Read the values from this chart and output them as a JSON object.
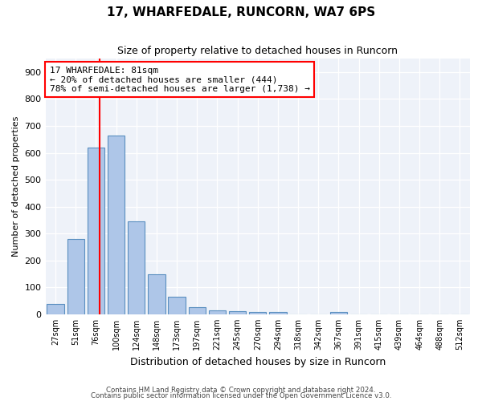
{
  "title1": "17, WHARFEDALE, RUNCORN, WA7 6PS",
  "title2": "Size of property relative to detached houses in Runcorn",
  "xlabel": "Distribution of detached houses by size in Runcorn",
  "ylabel": "Number of detached properties",
  "categories": [
    "27sqm",
    "51sqm",
    "76sqm",
    "100sqm",
    "124sqm",
    "148sqm",
    "173sqm",
    "197sqm",
    "221sqm",
    "245sqm",
    "270sqm",
    "294sqm",
    "318sqm",
    "342sqm",
    "367sqm",
    "391sqm",
    "415sqm",
    "439sqm",
    "464sqm",
    "488sqm",
    "512sqm"
  ],
  "values": [
    40,
    280,
    620,
    665,
    345,
    148,
    65,
    28,
    15,
    12,
    10,
    10,
    0,
    0,
    8,
    0,
    0,
    0,
    0,
    0,
    0
  ],
  "bar_color": "#aec6e8",
  "bar_edge_color": "#5a8fc0",
  "red_line_index": 2.18,
  "annotation_line1": "17 WHARFEDALE: 81sqm",
  "annotation_line2": "← 20% of detached houses are smaller (444)",
  "annotation_line3": "78% of semi-detached houses are larger (1,738) →",
  "ylim": [
    0,
    950
  ],
  "yticks": [
    0,
    100,
    200,
    300,
    400,
    500,
    600,
    700,
    800,
    900
  ],
  "background_color": "#eef2f9",
  "footer1": "Contains HM Land Registry data © Crown copyright and database right 2024.",
  "footer2": "Contains public sector information licensed under the Open Government Licence v3.0."
}
